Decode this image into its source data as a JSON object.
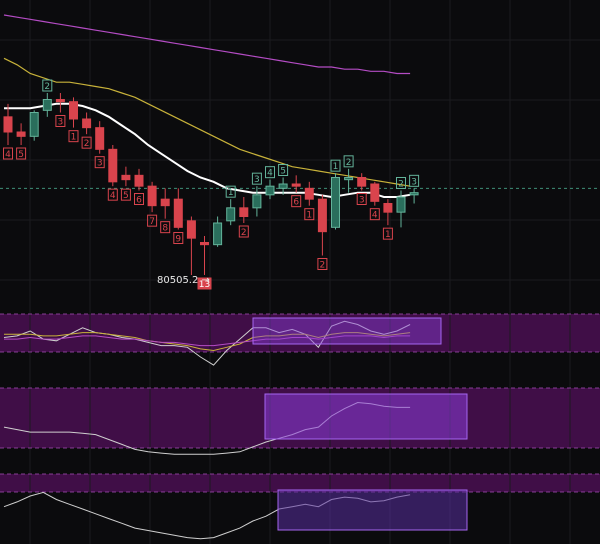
{
  "theme": {
    "background": "#0b0b0d",
    "bull": "#2a6e5c",
    "bull_outline": "#63b39a",
    "bear": "#d9444d",
    "ma_fast": "#ffffff",
    "ma_mid": "#c8b23a",
    "ma_slow": "#b44cc4",
    "zone": "#4a0f52",
    "highlight_box": "#8a3dd8",
    "dashed_level": "#3f8f78"
  },
  "chart_data": [
    {
      "type": "candlestick",
      "title": "",
      "y_axis_labels": "none shown",
      "annotations": {
        "low_label": "80505.2 →"
      },
      "candles": [
        {
          "i": 0,
          "o": 93,
          "h": 99,
          "l": 80,
          "c": 86,
          "bull": false,
          "seq": "4"
        },
        {
          "i": 1,
          "o": 86,
          "h": 90,
          "l": 80,
          "c": 84,
          "bull": false,
          "seq": "5"
        },
        {
          "i": 2,
          "o": 84,
          "h": 96,
          "l": 82,
          "c": 95,
          "bull": true,
          "seq": ""
        },
        {
          "i": 3,
          "o": 96,
          "h": 104,
          "l": 93,
          "c": 101,
          "bull": true,
          "seq": "2"
        },
        {
          "i": 4,
          "o": 101,
          "h": 104,
          "l": 95,
          "c": 100,
          "bull": false,
          "seq": "3"
        },
        {
          "i": 5,
          "o": 100,
          "h": 102,
          "l": 88,
          "c": 92,
          "bull": false,
          "seq": "1"
        },
        {
          "i": 6,
          "o": 92,
          "h": 95,
          "l": 85,
          "c": 88,
          "bull": false,
          "seq": "2"
        },
        {
          "i": 7,
          "o": 88,
          "h": 91,
          "l": 76,
          "c": 78,
          "bull": false,
          "seq": "3"
        },
        {
          "i": 8,
          "o": 78,
          "h": 80,
          "l": 61,
          "c": 63,
          "bull": false,
          "seq": "4"
        },
        {
          "i": 9,
          "o": 64,
          "h": 70,
          "l": 61,
          "c": 66,
          "bull": false,
          "seq": "5"
        },
        {
          "i": 10,
          "o": 66,
          "h": 69,
          "l": 59,
          "c": 61,
          "bull": false,
          "seq": "6"
        },
        {
          "i": 11,
          "o": 61,
          "h": 63,
          "l": 49,
          "c": 52,
          "bull": false,
          "seq": "7"
        },
        {
          "i": 12,
          "o": 52,
          "h": 60,
          "l": 46,
          "c": 55,
          "bull": false,
          "seq": "8"
        },
        {
          "i": 13,
          "o": 55,
          "h": 60,
          "l": 41,
          "c": 42,
          "bull": false,
          "seq": "9"
        },
        {
          "i": 14,
          "o": 45,
          "h": 47,
          "l": 20,
          "c": 37,
          "bull": false,
          "seq": ""
        },
        {
          "i": 15,
          "o": 35,
          "h": 38,
          "l": 20,
          "c": 34,
          "bull": false,
          "seq": "13"
        },
        {
          "i": 16,
          "o": 34,
          "h": 47,
          "l": 33,
          "c": 44,
          "bull": true,
          "seq": ""
        },
        {
          "i": 17,
          "o": 45,
          "h": 55,
          "l": 43,
          "c": 51,
          "bull": true,
          "seq": "1"
        },
        {
          "i": 18,
          "o": 47,
          "h": 56,
          "l": 44,
          "c": 51,
          "bull": false,
          "seq": "2"
        },
        {
          "i": 19,
          "o": 51,
          "h": 61,
          "l": 47,
          "c": 57,
          "bull": true,
          "seq": "3"
        },
        {
          "i": 20,
          "o": 57,
          "h": 64,
          "l": 55,
          "c": 61,
          "bull": true,
          "seq": "4"
        },
        {
          "i": 21,
          "o": 60,
          "h": 65,
          "l": 57,
          "c": 62,
          "bull": true,
          "seq": "5"
        },
        {
          "i": 22,
          "o": 62,
          "h": 66,
          "l": 58,
          "c": 61,
          "bull": false,
          "seq": "6"
        },
        {
          "i": 23,
          "o": 60,
          "h": 63,
          "l": 52,
          "c": 55,
          "bull": false,
          "seq": "1"
        },
        {
          "i": 24,
          "o": 55,
          "h": 57,
          "l": 29,
          "c": 40,
          "bull": false,
          "seq": "2"
        },
        {
          "i": 25,
          "o": 42,
          "h": 67,
          "l": 41,
          "c": 65,
          "bull": true,
          "seq": "1"
        },
        {
          "i": 26,
          "o": 64,
          "h": 69,
          "l": 58,
          "c": 65,
          "bull": true,
          "seq": "2"
        },
        {
          "i": 27,
          "o": 65,
          "h": 67,
          "l": 59,
          "c": 61,
          "bull": false,
          "seq": "3"
        },
        {
          "i": 28,
          "o": 62,
          "h": 63,
          "l": 52,
          "c": 54,
          "bull": false,
          "seq": "4"
        },
        {
          "i": 29,
          "o": 53,
          "h": 55,
          "l": 43,
          "c": 49,
          "bull": false,
          "seq": "1"
        },
        {
          "i": 30,
          "o": 49,
          "h": 59,
          "l": 42,
          "c": 56,
          "bull": true,
          "seq": "2"
        },
        {
          "i": 31,
          "o": 57,
          "h": 60,
          "l": 53,
          "c": 58,
          "bull": true,
          "seq": "3"
        }
      ],
      "lines": [
        {
          "name": "",
          "color_key": "ma_fast",
          "values": [
            97,
            97,
            97,
            98,
            99,
            99,
            98,
            96,
            93,
            89,
            85,
            80,
            76,
            72,
            68,
            65,
            63,
            60,
            59,
            58,
            58,
            58,
            58,
            58,
            57,
            56,
            57,
            58,
            58,
            56,
            56,
            57
          ]
        },
        {
          "name": "",
          "color_key": "ma_mid",
          "values": [
            120,
            117,
            113,
            111,
            109,
            109,
            108,
            107,
            106,
            104,
            102,
            99,
            96,
            93,
            90,
            87,
            84,
            81,
            78,
            76,
            74,
            72,
            70,
            69,
            68,
            67,
            66,
            65,
            64,
            63,
            62,
            61
          ]
        },
        {
          "name": "",
          "color_key": "ma_slow",
          "values": [
            140,
            139,
            138,
            137,
            136,
            135,
            134,
            133,
            132,
            131,
            130,
            129,
            128,
            127,
            126,
            125,
            124,
            123,
            122,
            121,
            120,
            119,
            118,
            117,
            116,
            116,
            115,
            115,
            114,
            114,
            113,
            113
          ]
        }
      ],
      "dashed_level": 60
    },
    {
      "type": "line",
      "series": [
        {
          "name": "",
          "color": "#cfcfcf",
          "values": [
            50,
            51,
            54,
            49,
            48,
            52,
            56,
            53,
            52,
            50,
            49,
            47,
            45,
            45,
            44,
            38,
            33,
            42,
            49,
            56,
            56,
            53,
            55,
            52,
            44,
            57,
            60,
            58,
            54,
            52,
            54,
            58
          ]
        },
        {
          "name": "",
          "color": "#c8b23a",
          "values": [
            52,
            52,
            52,
            51,
            51,
            52,
            53,
            53,
            52,
            51,
            50,
            48,
            47,
            46,
            45,
            43,
            42,
            44,
            46,
            50,
            51,
            51,
            52,
            52,
            50,
            52,
            53,
            53,
            52,
            51,
            52,
            53
          ]
        },
        {
          "name": "",
          "color": "#b44cc4",
          "values": [
            49,
            49,
            50,
            49,
            49,
            50,
            51,
            51,
            50,
            49,
            49,
            48,
            47,
            47,
            46,
            45,
            45,
            46,
            47,
            48,
            49,
            49,
            50,
            50,
            49,
            50,
            51,
            51,
            51,
            50,
            51,
            51
          ]
        }
      ]
    },
    {
      "type": "line",
      "series": [
        {
          "name": "",
          "color": "#cfcfcf",
          "values": [
            40,
            38,
            36,
            36,
            36,
            36,
            35,
            34,
            30,
            26,
            22,
            20,
            19,
            18,
            18,
            18,
            18,
            19,
            20,
            24,
            28,
            31,
            34,
            38,
            40,
            49,
            55,
            60,
            59,
            57,
            56,
            56
          ]
        }
      ]
    },
    {
      "type": "line",
      "series": [
        {
          "name": "",
          "color": "#cfcfcf",
          "values": [
            46,
            50,
            55,
            58,
            52,
            48,
            44,
            40,
            36,
            32,
            28,
            26,
            24,
            22,
            20,
            19,
            20,
            24,
            28,
            34,
            38,
            44,
            46,
            48,
            46,
            52,
            54,
            53,
            50,
            51,
            54,
            56
          ]
        }
      ]
    }
  ]
}
